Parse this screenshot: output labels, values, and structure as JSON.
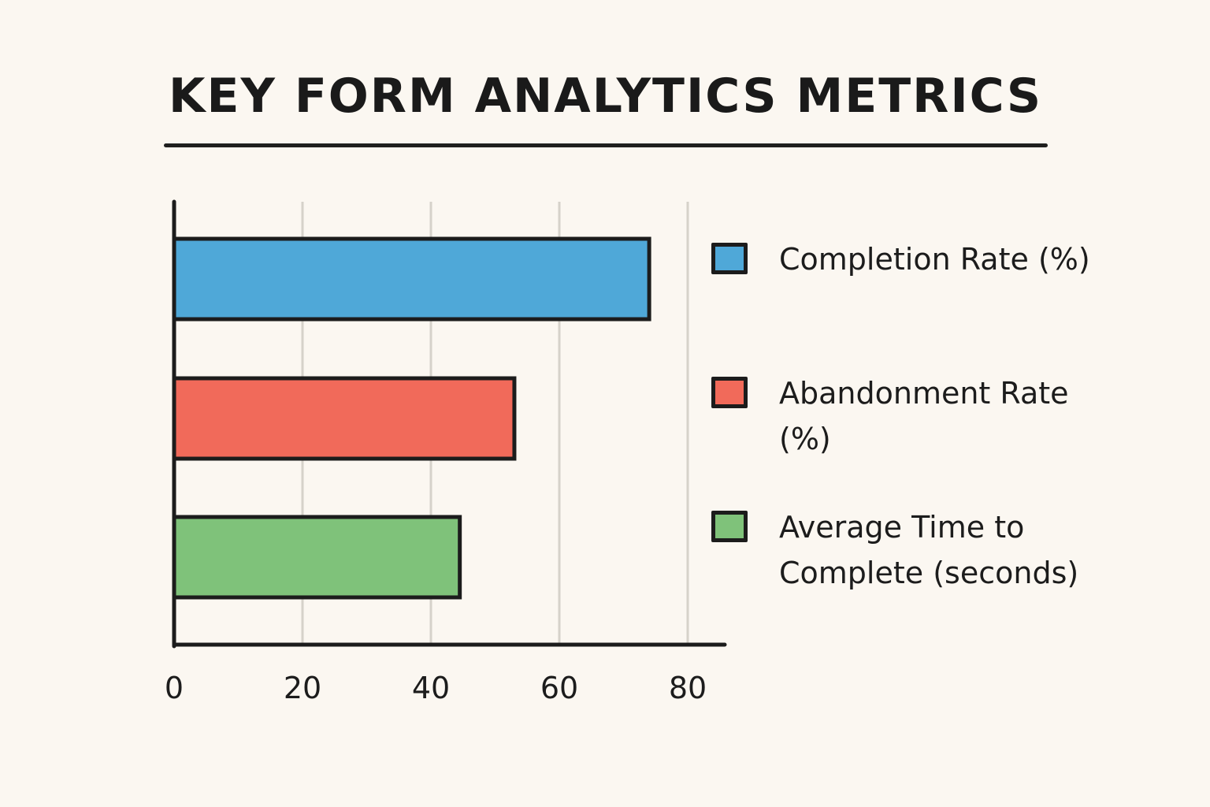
{
  "chart_data": {
    "type": "bar",
    "orientation": "horizontal",
    "title": "KEY FORM ANALYTICS METRICS",
    "categories": [
      "Completion Rate (%)",
      "Abandonment Rate (%)",
      "Average Time to Complete (seconds)"
    ],
    "values": [
      74,
      53,
      44.5
    ],
    "colors": [
      "#4fa8d8",
      "#f16a5a",
      "#7fc27a"
    ],
    "xlim": [
      0,
      85
    ],
    "xticks": [
      0,
      20,
      40,
      60,
      80
    ],
    "xtick_labels": [
      "0",
      "20",
      "40",
      "60",
      "80"
    ],
    "grid": true,
    "legend": "right",
    "legend_entries": [
      {
        "label": "Completion Rate (%)",
        "color": "#4fa8d8"
      },
      {
        "label": "Abandonment Rate (%)",
        "color": "#f16a5a"
      },
      {
        "label": "Average Time to Complete (seconds)",
        "color": "#7fc27a"
      }
    ]
  }
}
